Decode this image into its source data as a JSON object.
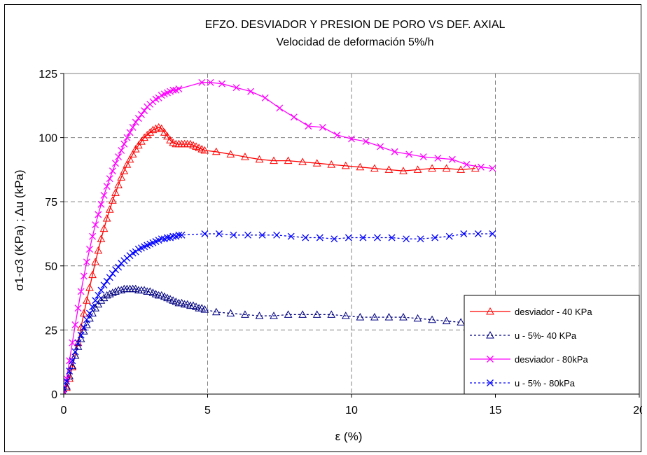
{
  "chart_data": {
    "type": "line",
    "title": "EFZO. DESVIADOR Y PRESION DE PORO VS DEF. AXIAL",
    "subtitle": "Velocidad de deformación 5%/h",
    "xlabel": "ε (%)",
    "ylabel": "σ1-σ3 (KPa) ; Δu (kPa)",
    "xlim": [
      0,
      20
    ],
    "ylim": [
      0,
      125
    ],
    "xticks": [
      "0",
      "5",
      "10",
      "15",
      "20"
    ],
    "yticks": [
      "0",
      "25",
      "50",
      "75",
      "100",
      "125"
    ],
    "grid": true,
    "legend_position": "bottom-right",
    "series": [
      {
        "name": "desviador - 40 KPa",
        "color": "#ff0000",
        "line_style": "solid",
        "marker": "triangle",
        "x": [
          0,
          0.1,
          0.2,
          0.3,
          0.4,
          0.5,
          0.6,
          0.7,
          0.8,
          0.9,
          1.0,
          1.1,
          1.2,
          1.3,
          1.4,
          1.5,
          1.6,
          1.7,
          1.8,
          1.9,
          2.0,
          2.1,
          2.2,
          2.3,
          2.4,
          2.5,
          2.6,
          2.7,
          2.8,
          2.9,
          3.0,
          3.1,
          3.2,
          3.3,
          3.4,
          3.5,
          3.6,
          3.7,
          3.8,
          3.9,
          4.0,
          4.1,
          4.2,
          4.3,
          4.4,
          4.5,
          4.6,
          4.7,
          4.8,
          4.9,
          5.3,
          5.8,
          6.3,
          6.8,
          7.3,
          7.8,
          8.3,
          8.8,
          9.3,
          9.8,
          10.3,
          10.8,
          11.3,
          11.8,
          12.3,
          12.8,
          13.3,
          13.8,
          14.3
        ],
        "y": [
          0,
          2.5,
          6,
          10.5,
          15,
          20,
          26,
          31.5,
          36.5,
          41.5,
          46.5,
          51.5,
          56,
          60.5,
          64.5,
          68.5,
          72,
          75.5,
          78.5,
          81.5,
          84.5,
          87,
          89.5,
          91.5,
          93.5,
          95.5,
          97,
          98.5,
          100,
          101,
          102,
          103,
          103.5,
          104,
          103.5,
          102,
          100.5,
          99,
          98,
          97.5,
          97.5,
          97.5,
          97.5,
          97.5,
          97.5,
          97,
          96.5,
          96,
          95.5,
          95,
          94.5,
          93.5,
          92.5,
          91.5,
          91,
          91,
          90.5,
          90,
          89.5,
          89,
          88.5,
          88,
          87.5,
          87,
          87.5,
          88,
          88,
          87.5,
          88
        ]
      },
      {
        "name": "u - 5%- 40 KPa",
        "color": "#000080",
        "line_style": "dashed",
        "marker": "triangle",
        "x": [
          0,
          0.1,
          0.2,
          0.3,
          0.4,
          0.5,
          0.6,
          0.7,
          0.8,
          0.9,
          1.0,
          1.1,
          1.2,
          1.3,
          1.4,
          1.5,
          1.6,
          1.7,
          1.8,
          1.9,
          2.0,
          2.1,
          2.2,
          2.3,
          2.4,
          2.5,
          2.6,
          2.7,
          2.8,
          2.9,
          3.0,
          3.1,
          3.2,
          3.3,
          3.4,
          3.5,
          3.6,
          3.7,
          3.8,
          3.9,
          4.0,
          4.1,
          4.2,
          4.3,
          4.4,
          4.5,
          4.6,
          4.7,
          4.8,
          4.9,
          5.3,
          5.8,
          6.3,
          6.8,
          7.3,
          7.8,
          8.3,
          8.8,
          9.3,
          9.8,
          10.3,
          10.8,
          11.3,
          11.8,
          12.3,
          12.8,
          13.3,
          13.8
        ],
        "y": [
          0,
          3,
          7,
          11,
          15,
          18.5,
          21.5,
          24.5,
          27,
          29.5,
          31.5,
          33.5,
          35,
          36.5,
          37.5,
          38.5,
          39,
          39.5,
          40,
          40.5,
          40.5,
          41,
          41,
          41,
          41,
          41,
          40.5,
          40.5,
          40.5,
          40,
          40,
          39.5,
          39,
          38.5,
          38.5,
          38,
          37.5,
          37,
          36.5,
          36,
          35.5,
          35.5,
          35,
          35,
          34.5,
          34.5,
          34,
          33.5,
          33.5,
          33,
          32,
          31.5,
          31,
          30.5,
          30.5,
          31,
          31,
          31,
          31,
          30.5,
          30,
          30,
          30,
          30,
          29.5,
          29,
          28.5,
          28
        ]
      },
      {
        "name": "desviador - 80kPa",
        "color": "#ff00ff",
        "line_style": "solid",
        "marker": "x",
        "x": [
          0,
          0.1,
          0.2,
          0.3,
          0.4,
          0.5,
          0.6,
          0.7,
          0.8,
          0.9,
          1.0,
          1.1,
          1.2,
          1.3,
          1.4,
          1.5,
          1.6,
          1.7,
          1.8,
          1.9,
          2.0,
          2.1,
          2.2,
          2.3,
          2.4,
          2.5,
          2.6,
          2.7,
          2.8,
          2.9,
          3.0,
          3.1,
          3.2,
          3.3,
          3.4,
          3.5,
          3.6,
          3.7,
          3.8,
          3.9,
          4.0,
          4.8,
          5.1,
          5.5,
          6.0,
          6.5,
          7.0,
          7.5,
          8.0,
          8.5,
          9.0,
          9.5,
          10.0,
          10.5,
          11.0,
          11.5,
          12.0,
          12.5,
          13.0,
          13.5,
          14.0,
          14.5,
          14.9
        ],
        "y": [
          0,
          6,
          13,
          20,
          27,
          33.5,
          40,
          46,
          51.5,
          56.5,
          61.5,
          66,
          70,
          74,
          77.5,
          81,
          84,
          87,
          90,
          92.5,
          95,
          97.5,
          100,
          102,
          104,
          106,
          107.5,
          109,
          110.5,
          112,
          113,
          114,
          115,
          115.5,
          116.5,
          117,
          117.5,
          118,
          118.5,
          118.5,
          119,
          121.5,
          121.5,
          121,
          119.5,
          118,
          115.5,
          111.5,
          108,
          104.5,
          104,
          101,
          99.5,
          98.5,
          96.5,
          94.5,
          93.5,
          92.5,
          92,
          91.5,
          89.5,
          88.5,
          88
        ]
      },
      {
        "name": "u - 5% - 80kPa",
        "color": "#0000ff",
        "line_style": "dashed",
        "marker": "x",
        "x": [
          0,
          0.1,
          0.2,
          0.3,
          0.4,
          0.5,
          0.6,
          0.7,
          0.8,
          0.9,
          1.0,
          1.1,
          1.2,
          1.3,
          1.4,
          1.5,
          1.6,
          1.7,
          1.8,
          1.9,
          2.0,
          2.1,
          2.2,
          2.3,
          2.4,
          2.5,
          2.6,
          2.7,
          2.8,
          2.9,
          3.0,
          3.1,
          3.2,
          3.3,
          3.4,
          3.5,
          3.6,
          3.7,
          3.8,
          3.9,
          4.0,
          4.1,
          4.9,
          5.4,
          5.9,
          6.4,
          6.9,
          7.4,
          7.9,
          8.4,
          8.9,
          9.4,
          9.9,
          10.4,
          10.9,
          11.4,
          11.9,
          12.4,
          12.9,
          13.4,
          13.9,
          14.4,
          14.9
        ],
        "y": [
          2,
          5,
          9,
          13,
          16.5,
          20,
          23,
          26,
          29,
          31.5,
          34,
          36.5,
          38.5,
          40.5,
          42.5,
          44,
          45.5,
          47,
          48.5,
          49.5,
          51,
          52,
          53,
          54,
          55,
          55.5,
          56.5,
          57,
          57.5,
          58,
          58.5,
          59,
          59.5,
          60,
          60.5,
          60.5,
          61,
          61,
          61.5,
          61.5,
          62,
          62,
          62.5,
          62.5,
          62,
          62,
          62,
          62,
          61.5,
          61,
          61,
          60.5,
          61,
          61,
          61,
          61,
          60.5,
          60.5,
          61,
          61.5,
          62.5,
          62.5,
          62.5
        ]
      }
    ]
  }
}
